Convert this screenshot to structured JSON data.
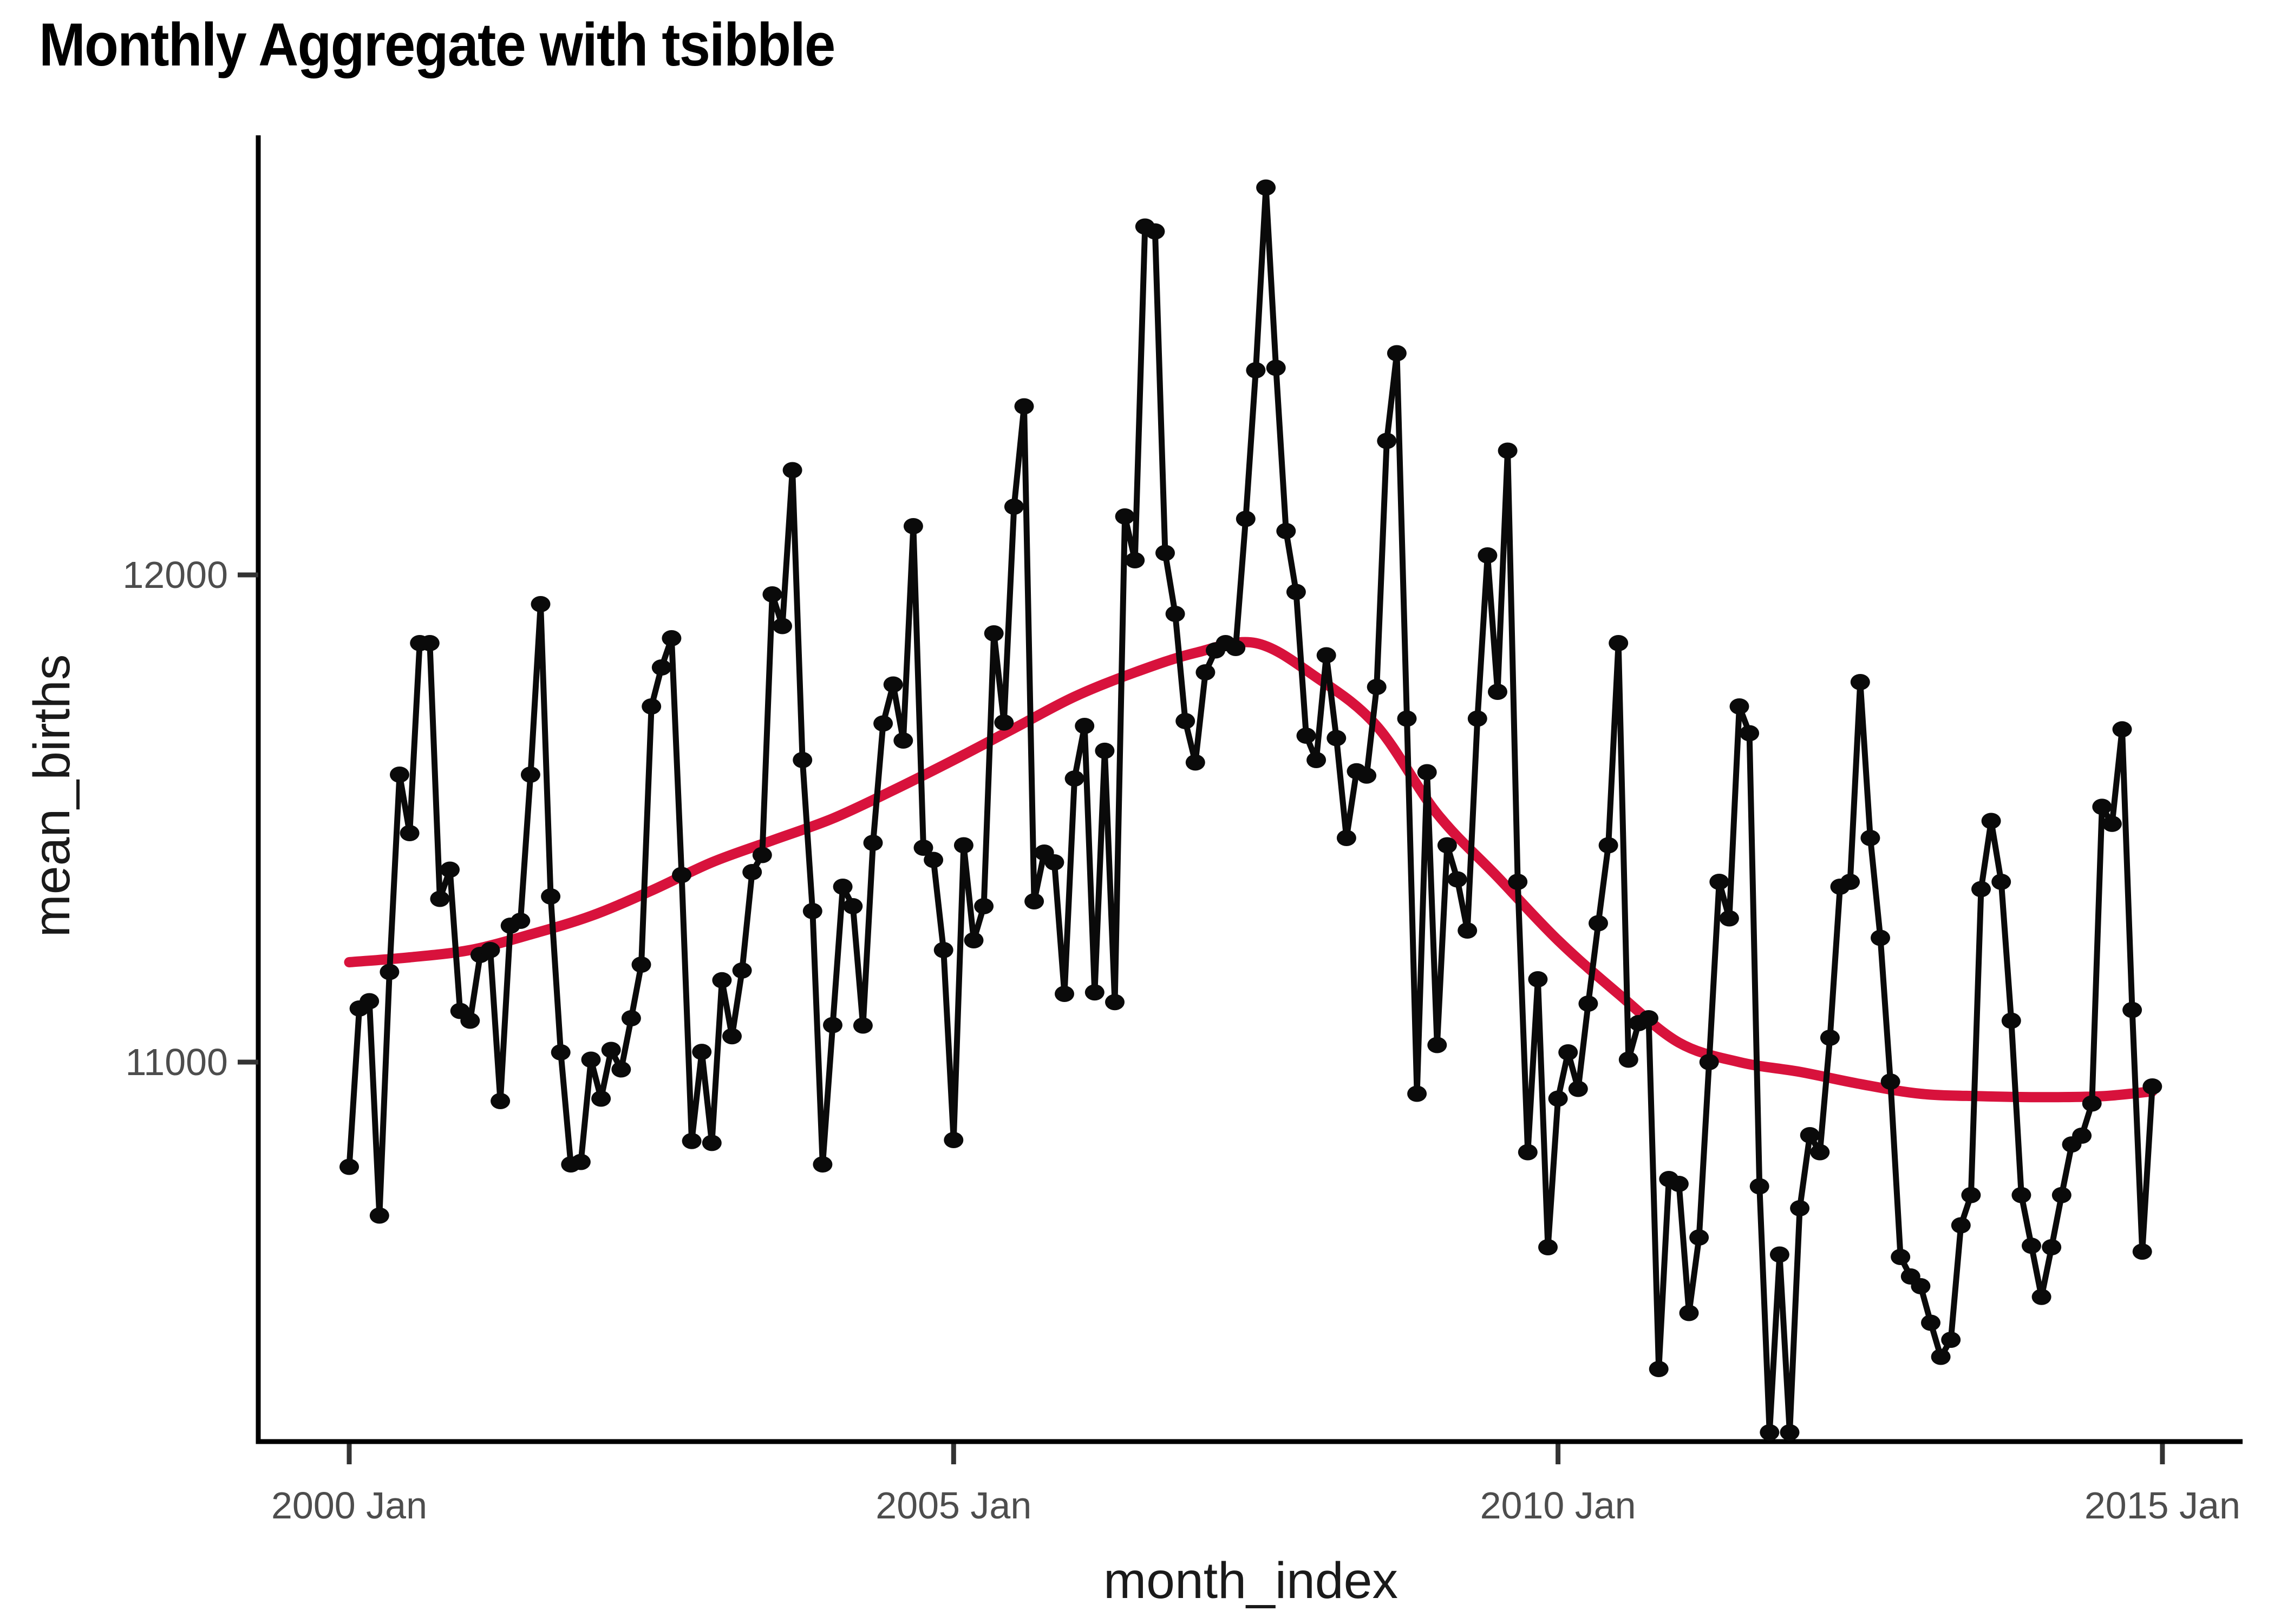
{
  "title": "Monthly Aggregate with tsibble",
  "colors": {
    "background": "#ffffff",
    "title_text": "#000000",
    "axis_line": "#000000",
    "axis_title_text": "#1a1a1a",
    "tick_mark": "#333333",
    "tick_label_text": "#4d4d4d",
    "data_series": "#0a0a0a",
    "smooth_line": "#d8123c"
  },
  "chart_data": {
    "type": "line",
    "title": "Monthly Aggregate with tsibble",
    "xlabel": "month_index",
    "ylabel": "mean_births",
    "grid": false,
    "legend_position": "none",
    "x_tick_labels": [
      "2000 Jan",
      "2005 Jan",
      "2010 Jan",
      "2015 Jan"
    ],
    "x_tick_month_index": [
      0,
      60,
      120,
      180
    ],
    "y_ticks": [
      11000,
      12000
    ],
    "y_tick_labels": [
      "11000",
      "12000"
    ],
    "ylim": [
      10180,
      12900
    ],
    "series_start": "2000 Jan",
    "series_end": "2014 Dec",
    "series": [
      {
        "name": "mean_births",
        "geom": "point+line",
        "color": "#0a0a0a",
        "values": [
          10785,
          11110,
          11125,
          10685,
          11185,
          11590,
          11470,
          11860,
          11860,
          11335,
          11395,
          11105,
          11085,
          11220,
          11230,
          10920,
          11280,
          11290,
          11590,
          11940,
          11340,
          11020,
          10790,
          10795,
          11005,
          10925,
          11025,
          10985,
          11090,
          11200,
          11730,
          11810,
          11870,
          11384,
          10838,
          11021,
          10834,
          11168,
          11053,
          11188,
          11390,
          11425,
          11960,
          11895,
          12215,
          11620,
          11310,
          10790,
          11076,
          11360,
          11320,
          11075,
          11450,
          11695,
          11775,
          11660,
          12100,
          11440,
          11415,
          11230,
          10840,
          11445,
          11250,
          11320,
          11880,
          11697,
          12140,
          12346,
          11330,
          11430,
          11410,
          11140,
          11582,
          11690,
          11143,
          11639,
          11123,
          12120,
          12030,
          12715,
          12705,
          12045,
          11920,
          11700,
          11615,
          11800,
          11845,
          11860,
          11850,
          12115,
          12420,
          12795,
          12425,
          12090,
          11965,
          11670,
          11620,
          11835,
          11665,
          11460,
          11597,
          11588,
          11770,
          12275,
          12455,
          11705,
          10935,
          11595,
          11035,
          11445,
          11375,
          11270,
          11705,
          12040,
          11760,
          12255,
          11370,
          10815,
          11170,
          10620,
          10925,
          11020,
          10945,
          11120,
          11285,
          11445,
          11860,
          11005,
          11080,
          11090,
          10370,
          10760,
          10750,
          10485,
          10640,
          11000,
          11370,
          11295,
          11730,
          11675,
          10745,
          10240,
          10605,
          10240,
          10700,
          10850,
          10815,
          11050,
          11360,
          11370,
          11780,
          11460,
          11255,
          10960,
          10600,
          10560,
          10540,
          10465,
          10395,
          10430,
          10665,
          10727,
          11355,
          11495,
          11370,
          11085,
          10727,
          10623,
          10518,
          10620,
          10727,
          10831,
          10849,
          10915,
          11524,
          11489,
          11683,
          11107,
          10611,
          10950
        ]
      },
      {
        "name": "loess_smooth",
        "geom": "smooth",
        "color": "#d8123c",
        "anchors": [
          [
            0,
            11205
          ],
          [
            6,
            11215
          ],
          [
            12,
            11230
          ],
          [
            18,
            11262
          ],
          [
            24,
            11300
          ],
          [
            30,
            11352
          ],
          [
            36,
            11410
          ],
          [
            42,
            11455
          ],
          [
            48,
            11500
          ],
          [
            54,
            11558
          ],
          [
            60,
            11620
          ],
          [
            66,
            11685
          ],
          [
            72,
            11750
          ],
          [
            78,
            11800
          ],
          [
            84,
            11840
          ],
          [
            90,
            11860
          ],
          [
            96,
            11790
          ],
          [
            102,
            11690
          ],
          [
            108,
            11510
          ],
          [
            114,
            11380
          ],
          [
            120,
            11250
          ],
          [
            126,
            11140
          ],
          [
            132,
            11040
          ],
          [
            138,
            11000
          ],
          [
            144,
            10980
          ],
          [
            150,
            10955
          ],
          [
            156,
            10935
          ],
          [
            162,
            10930
          ],
          [
            168,
            10928
          ],
          [
            174,
            10930
          ],
          [
            179,
            10940
          ]
        ]
      }
    ]
  }
}
